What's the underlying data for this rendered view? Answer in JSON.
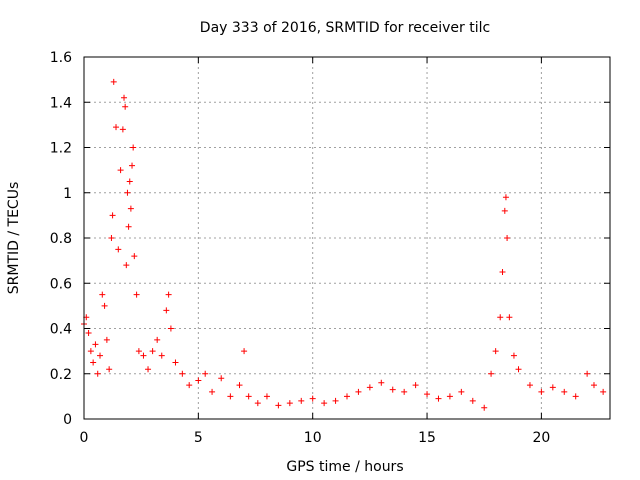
{
  "chart_data": {
    "type": "scatter",
    "title": "Day 333 of 2016, SRMTID for receiver tilc",
    "xlabel": "GPS time / hours",
    "ylabel": "SRMTID / TECUs",
    "xlim": [
      0,
      23
    ],
    "ylim": [
      0,
      1.6
    ],
    "x_ticks": [
      0,
      5,
      10,
      15,
      20
    ],
    "x_tick_labels": [
      "0",
      "5",
      "10",
      "15",
      "20"
    ],
    "y_ticks": [
      0,
      0.2,
      0.4,
      0.6,
      0.8,
      1.0,
      1.2,
      1.4,
      1.6
    ],
    "y_tick_labels": [
      "0",
      "0.2",
      "0.4",
      "0.6",
      "0.8",
      "1",
      "1.2",
      "1.4",
      "1.6"
    ],
    "grid": true,
    "marker": "+",
    "colors": {
      "series": "#ff0000",
      "grid": "#a0a0a0",
      "axis": "#000000"
    },
    "series": [
      {
        "name": "SRMTID",
        "points": [
          [
            0.0,
            0.42
          ],
          [
            0.1,
            0.45
          ],
          [
            0.2,
            0.38
          ],
          [
            0.3,
            0.3
          ],
          [
            0.4,
            0.25
          ],
          [
            0.5,
            0.33
          ],
          [
            0.6,
            0.2
          ],
          [
            0.7,
            0.28
          ],
          [
            0.8,
            0.55
          ],
          [
            0.9,
            0.5
          ],
          [
            1.0,
            0.35
          ],
          [
            1.1,
            0.22
          ],
          [
            1.2,
            0.8
          ],
          [
            1.25,
            0.9
          ],
          [
            1.3,
            1.49
          ],
          [
            1.4,
            1.29
          ],
          [
            1.5,
            0.75
          ],
          [
            1.6,
            1.1
          ],
          [
            1.7,
            1.28
          ],
          [
            1.75,
            1.42
          ],
          [
            1.8,
            1.38
          ],
          [
            1.85,
            0.68
          ],
          [
            1.9,
            1.0
          ],
          [
            1.95,
            0.85
          ],
          [
            2.0,
            1.05
          ],
          [
            2.05,
            0.93
          ],
          [
            2.1,
            1.12
          ],
          [
            2.15,
            1.2
          ],
          [
            2.2,
            0.72
          ],
          [
            2.3,
            0.55
          ],
          [
            2.4,
            0.3
          ],
          [
            2.6,
            0.28
          ],
          [
            2.8,
            0.22
          ],
          [
            3.0,
            0.3
          ],
          [
            3.2,
            0.35
          ],
          [
            3.4,
            0.28
          ],
          [
            3.6,
            0.48
          ],
          [
            3.7,
            0.55
          ],
          [
            3.8,
            0.4
          ],
          [
            4.0,
            0.25
          ],
          [
            4.3,
            0.2
          ],
          [
            4.6,
            0.15
          ],
          [
            5.0,
            0.17
          ],
          [
            5.3,
            0.2
          ],
          [
            5.6,
            0.12
          ],
          [
            6.0,
            0.18
          ],
          [
            6.4,
            0.1
          ],
          [
            6.8,
            0.15
          ],
          [
            7.0,
            0.3
          ],
          [
            7.2,
            0.1
          ],
          [
            7.6,
            0.07
          ],
          [
            8.0,
            0.1
          ],
          [
            8.5,
            0.06
          ],
          [
            9.0,
            0.07
          ],
          [
            9.5,
            0.08
          ],
          [
            10.0,
            0.09
          ],
          [
            10.5,
            0.07
          ],
          [
            11.0,
            0.08
          ],
          [
            11.5,
            0.1
          ],
          [
            12.0,
            0.12
          ],
          [
            12.5,
            0.14
          ],
          [
            13.0,
            0.16
          ],
          [
            13.5,
            0.13
          ],
          [
            14.0,
            0.12
          ],
          [
            14.5,
            0.15
          ],
          [
            15.0,
            0.11
          ],
          [
            15.5,
            0.09
          ],
          [
            16.0,
            0.1
          ],
          [
            16.5,
            0.12
          ],
          [
            17.0,
            0.08
          ],
          [
            17.5,
            0.05
          ],
          [
            17.8,
            0.2
          ],
          [
            18.0,
            0.3
          ],
          [
            18.2,
            0.45
          ],
          [
            18.3,
            0.65
          ],
          [
            18.4,
            0.92
          ],
          [
            18.45,
            0.98
          ],
          [
            18.5,
            0.8
          ],
          [
            18.6,
            0.45
          ],
          [
            18.8,
            0.28
          ],
          [
            19.0,
            0.22
          ],
          [
            19.5,
            0.15
          ],
          [
            20.0,
            0.12
          ],
          [
            20.5,
            0.14
          ],
          [
            21.0,
            0.12
          ],
          [
            21.5,
            0.1
          ],
          [
            22.0,
            0.2
          ],
          [
            22.3,
            0.15
          ],
          [
            22.7,
            0.12
          ]
        ]
      }
    ]
  }
}
